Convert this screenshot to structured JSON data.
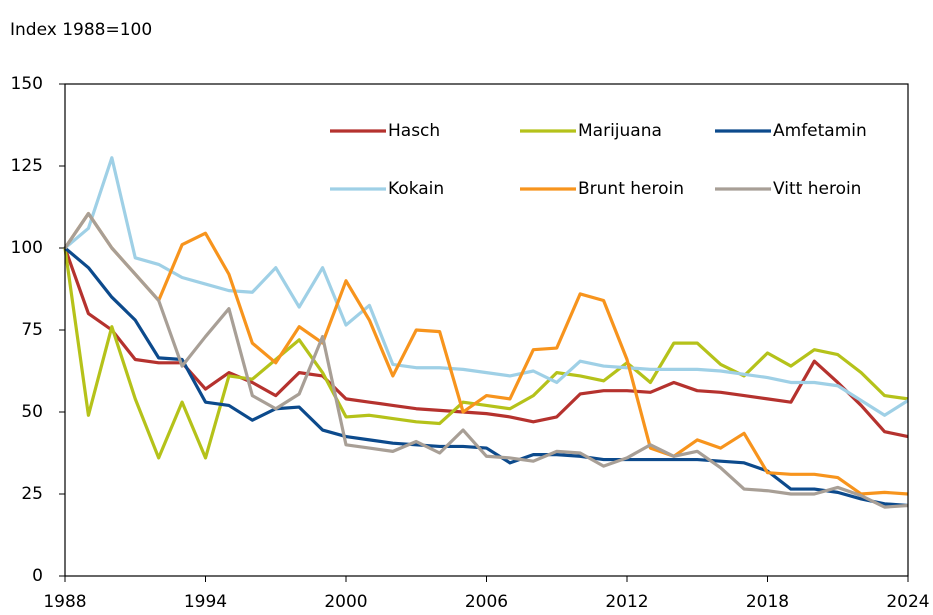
{
  "chart_data": {
    "type": "line",
    "y_label": "Index 1988=100",
    "x": [
      1988,
      1989,
      1990,
      1991,
      1992,
      1993,
      1994,
      1995,
      1996,
      1997,
      1998,
      1999,
      2000,
      2001,
      2002,
      2003,
      2004,
      2005,
      2006,
      2007,
      2008,
      2009,
      2010,
      2011,
      2012,
      2013,
      2014,
      2015,
      2016,
      2017,
      2018,
      2019,
      2020,
      2021,
      2022,
      2023,
      2024
    ],
    "xlim": [
      1988,
      2024
    ],
    "xticks": [
      1988,
      1994,
      2000,
      2006,
      2012,
      2018,
      2024
    ],
    "ylim": [
      0,
      150
    ],
    "yticks": [
      0,
      25,
      50,
      75,
      100,
      125,
      150
    ],
    "grid": false,
    "legend": "upper right",
    "series": [
      {
        "name": "Hasch",
        "color": "#b5322e",
        "values": [
          100,
          80,
          75,
          66,
          65,
          65,
          57,
          62,
          59,
          55,
          62,
          61,
          54,
          53,
          52,
          51,
          50.5,
          50,
          49.5,
          48.5,
          47,
          48.5,
          55.5,
          56.5,
          56.5,
          56,
          59,
          56.5,
          56,
          55,
          54,
          53,
          65.5,
          59,
          52,
          44,
          42.5
        ]
      },
      {
        "name": "Marijuana",
        "color": "#b5c21a",
        "values": [
          100,
          49,
          76,
          54,
          36,
          53,
          36,
          61,
          60,
          66,
          72,
          62,
          48.5,
          49,
          48,
          47,
          46.5,
          53,
          52,
          51,
          55,
          62,
          61,
          59.5,
          65,
          59,
          71,
          71,
          64.5,
          61,
          68,
          64,
          69,
          67.5,
          62,
          55,
          54
        ]
      },
      {
        "name": "Amfetamin",
        "color": "#0c4a8c",
        "values": [
          100,
          94,
          85,
          78,
          66.5,
          66,
          53,
          52,
          47.5,
          51,
          51.5,
          44.5,
          42.5,
          41.5,
          40.5,
          40,
          39.5,
          39.5,
          39,
          34.5,
          37,
          37,
          36.5,
          35.5,
          35.5,
          35.5,
          35.5,
          35.5,
          35,
          34.5,
          32,
          26.5,
          26.5,
          25.5,
          23.5,
          22,
          21.5
        ]
      },
      {
        "name": "Kokain",
        "color": "#9fd0e6",
        "values": [
          100,
          106,
          127.5,
          97,
          95,
          91,
          89,
          87,
          86.5,
          94,
          82,
          94,
          76.5,
          82.5,
          64.5,
          63.5,
          63.5,
          63,
          62,
          61,
          62.5,
          59,
          65.5,
          64,
          63.5,
          63,
          63,
          63,
          62.5,
          61.5,
          60.5,
          59,
          59,
          58,
          53.5,
          49,
          53.5
        ]
      },
      {
        "name": "Brunt heroin",
        "color": "#f7941d",
        "values": [
          100,
          110.5,
          100,
          92,
          84,
          101,
          104.5,
          92,
          71,
          65,
          76,
          71,
          90,
          78,
          61,
          75,
          74.5,
          50,
          55,
          54,
          69,
          69.5,
          86,
          84,
          66,
          39,
          36.5,
          41.5,
          39,
          43.5,
          31.5,
          31,
          31,
          30,
          25,
          25.5,
          25
        ]
      },
      {
        "name": "Vitt heroin",
        "color": "#a89f96",
        "values": [
          100,
          110.5,
          100,
          92,
          84,
          64,
          73,
          81.5,
          55,
          51,
          55.5,
          73,
          40,
          39,
          38,
          41,
          37.5,
          44.5,
          36.5,
          36,
          35,
          38,
          37.5,
          33.5,
          36,
          40,
          36.5,
          38,
          33,
          26.5,
          26,
          25,
          25,
          27,
          24.5,
          21,
          21.5
        ]
      }
    ]
  }
}
